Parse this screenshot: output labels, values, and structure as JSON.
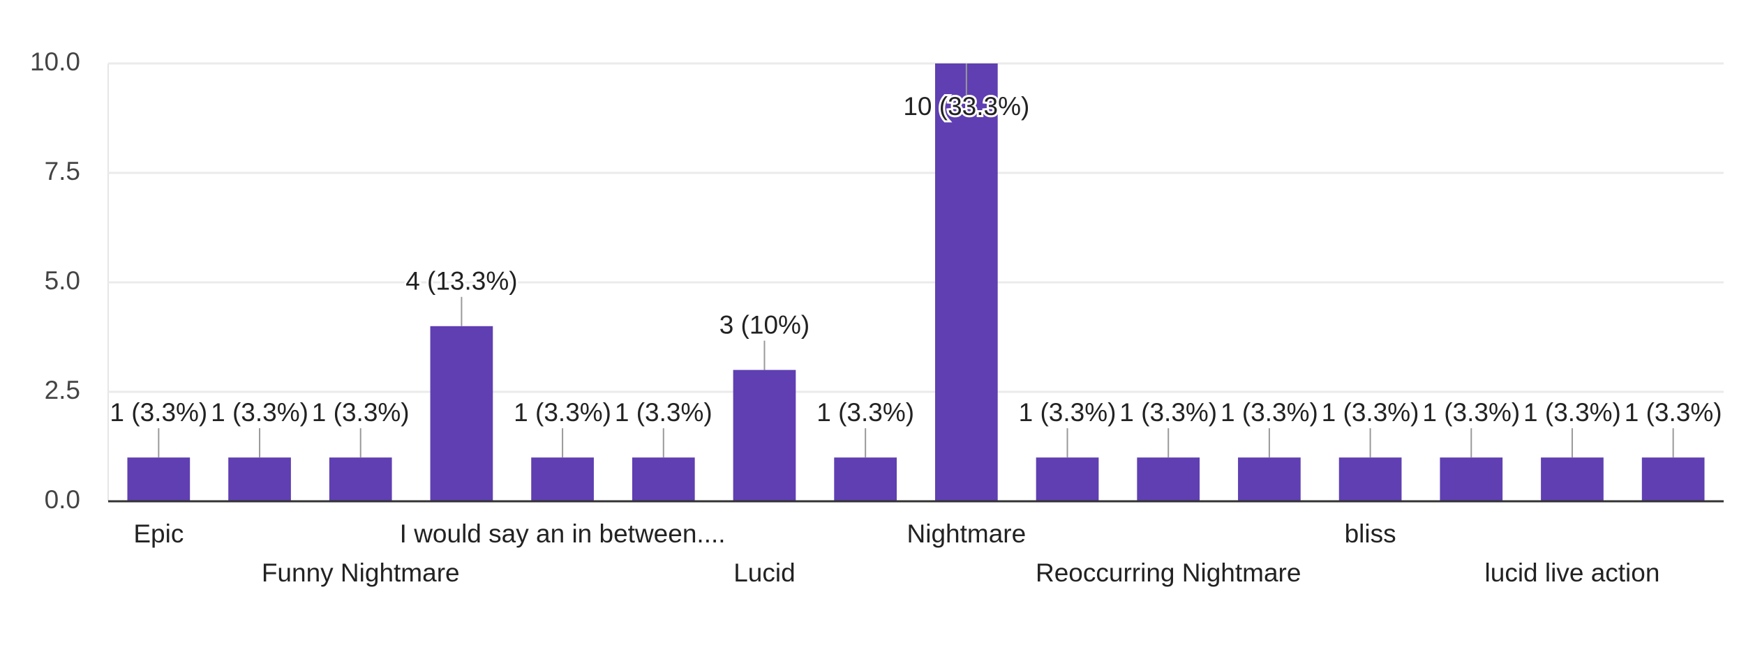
{
  "chart_data": {
    "type": "bar",
    "categories": [
      "Epic",
      null,
      "Funny Nightmare",
      null,
      "I would say an in between....",
      null,
      "Lucid",
      null,
      "Nightmare",
      null,
      "Reoccurring Nightmare",
      null,
      "bliss",
      null,
      "lucid live action",
      null
    ],
    "values": [
      1,
      1,
      1,
      4,
      1,
      1,
      3,
      1,
      10,
      1,
      1,
      1,
      1,
      1,
      1,
      1
    ],
    "value_labels": [
      "1 (3.3%)",
      "1 (3.3%)",
      "1 (3.3%)",
      "4 (13.3%)",
      "1 (3.3%)",
      "1 (3.3%)",
      "3 (10%)",
      "1 (3.3%)",
      "10 (33.3%)",
      "1 (3.3%)",
      "1 (3.3%)",
      "1 (3.3%)",
      "1 (3.3%)",
      "1 (3.3%)",
      "1 (3.3%)",
      "1 (3.3%)"
    ],
    "color": "#5f3fb2",
    "ylim": [
      0,
      10
    ],
    "yticks": [
      {
        "value": 0,
        "label": "0.0"
      },
      2.5,
      {
        "value": 5,
        "label": "5.0"
      },
      7.5,
      {
        "value": 10,
        "label": "10.0"
      }
    ],
    "grid": true
  }
}
